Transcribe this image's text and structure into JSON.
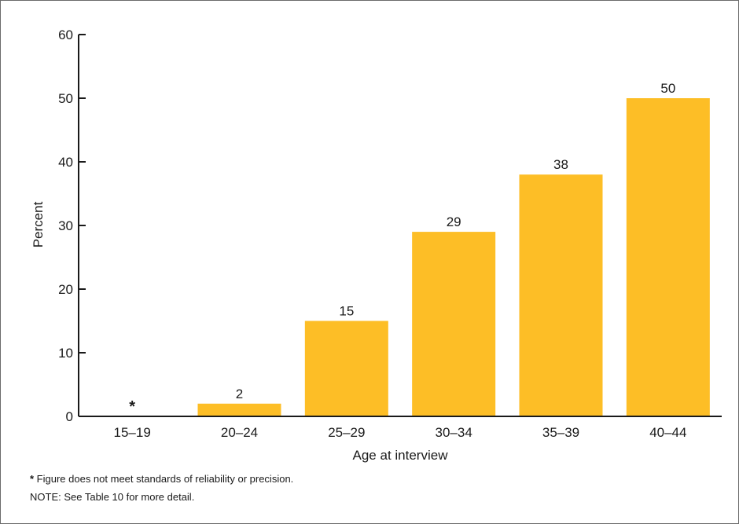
{
  "chart_data": {
    "type": "bar",
    "title": "",
    "xlabel": "Age at interview",
    "ylabel": "Percent",
    "ylim": [
      0,
      60
    ],
    "yticks": [
      0,
      10,
      20,
      30,
      40,
      50,
      60
    ],
    "categories": [
      "15–19",
      "20–24",
      "25–29",
      "30–34",
      "35–39",
      "40–44"
    ],
    "values": [
      0,
      2,
      15,
      29,
      38,
      50
    ],
    "data_labels": [
      "*",
      "2",
      "15",
      "29",
      "38",
      "50"
    ],
    "bar_color": "#FDBE26",
    "grid": false,
    "legend": "none"
  },
  "footnotes": {
    "star_symbol": "*",
    "star_text": " Figure does not meet standards of reliability or precision.",
    "note": "NOTE: See Table 10 for more detail."
  }
}
